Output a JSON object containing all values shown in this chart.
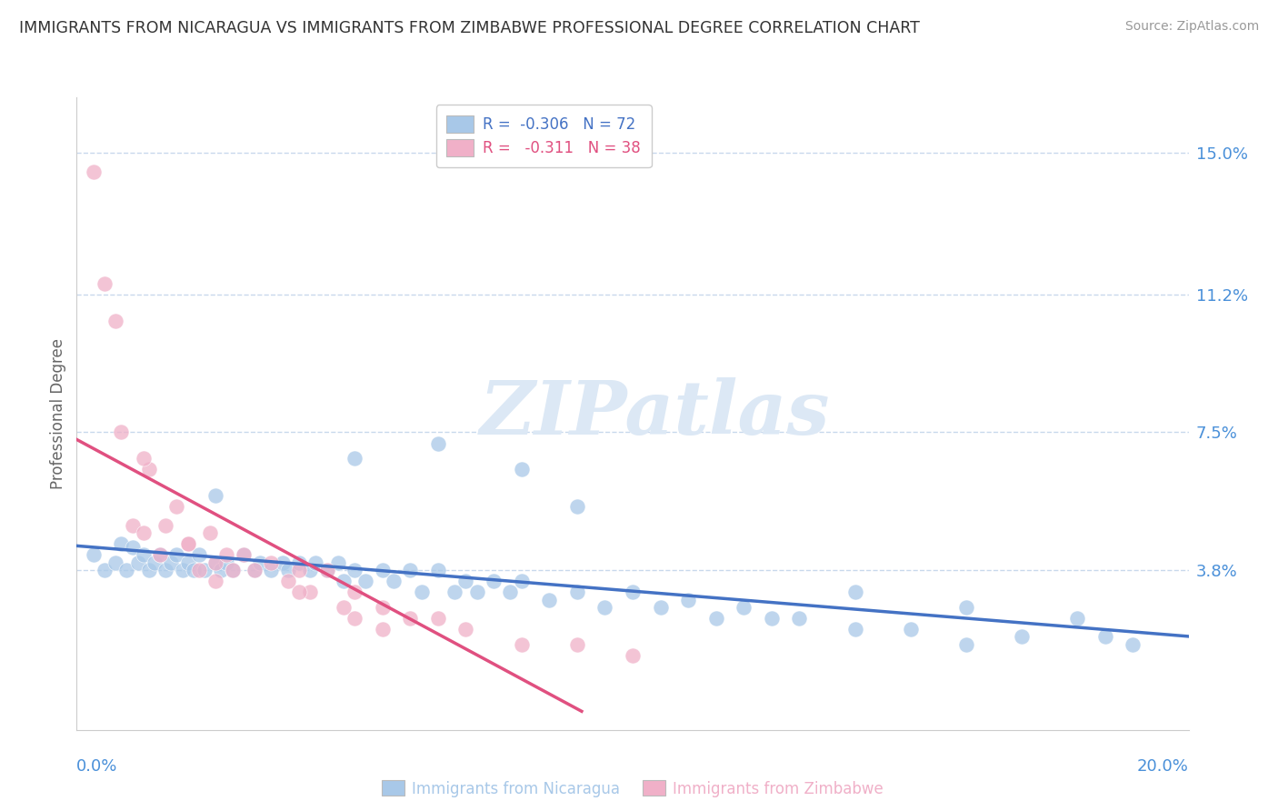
{
  "title": "IMMIGRANTS FROM NICARAGUA VS IMMIGRANTS FROM ZIMBABWE PROFESSIONAL DEGREE CORRELATION CHART",
  "source": "Source: ZipAtlas.com",
  "xlabel_blue": "Immigrants from Nicaragua",
  "xlabel_pink": "Immigrants from Zimbabwe",
  "ylabel": "Professional Degree",
  "R_blue": -0.306,
  "N_blue": 72,
  "R_pink": -0.311,
  "N_pink": 38,
  "xlim": [
    0.0,
    0.2
  ],
  "ylim": [
    0.0,
    0.16
  ],
  "yticks": [
    0.038,
    0.075,
    0.112,
    0.15
  ],
  "ytick_labels": [
    "3.8%",
    "7.5%",
    "11.2%",
    "15.0%"
  ],
  "blue_color": "#a8c8e8",
  "pink_color": "#f0b0c8",
  "blue_line_color": "#4472c4",
  "pink_line_color": "#e05080",
  "grid_color": "#c8d8ec",
  "watermark_color": "#dce8f5",
  "title_color": "#333333",
  "axis_label_color": "#4a90d9",
  "source_color": "#999999",
  "blue_scatter_x": [
    0.003,
    0.005,
    0.007,
    0.008,
    0.009,
    0.01,
    0.011,
    0.012,
    0.013,
    0.014,
    0.015,
    0.016,
    0.017,
    0.018,
    0.019,
    0.02,
    0.021,
    0.022,
    0.023,
    0.025,
    0.026,
    0.027,
    0.028,
    0.03,
    0.032,
    0.033,
    0.035,
    0.037,
    0.038,
    0.04,
    0.042,
    0.043,
    0.045,
    0.047,
    0.048,
    0.05,
    0.052,
    0.055,
    0.057,
    0.06,
    0.062,
    0.065,
    0.068,
    0.07,
    0.072,
    0.075,
    0.078,
    0.08,
    0.085,
    0.09,
    0.095,
    0.1,
    0.105,
    0.11,
    0.115,
    0.12,
    0.125,
    0.13,
    0.14,
    0.15,
    0.16,
    0.17,
    0.18,
    0.185,
    0.19,
    0.025,
    0.05,
    0.065,
    0.08,
    0.09,
    0.14,
    0.16
  ],
  "blue_scatter_y": [
    0.042,
    0.038,
    0.04,
    0.045,
    0.038,
    0.044,
    0.04,
    0.042,
    0.038,
    0.04,
    0.042,
    0.038,
    0.04,
    0.042,
    0.038,
    0.04,
    0.038,
    0.042,
    0.038,
    0.04,
    0.038,
    0.04,
    0.038,
    0.042,
    0.038,
    0.04,
    0.038,
    0.04,
    0.038,
    0.04,
    0.038,
    0.04,
    0.038,
    0.04,
    0.035,
    0.038,
    0.035,
    0.038,
    0.035,
    0.038,
    0.032,
    0.038,
    0.032,
    0.035,
    0.032,
    0.035,
    0.032,
    0.035,
    0.03,
    0.032,
    0.028,
    0.032,
    0.028,
    0.03,
    0.025,
    0.028,
    0.025,
    0.025,
    0.022,
    0.022,
    0.018,
    0.02,
    0.025,
    0.02,
    0.018,
    0.058,
    0.068,
    0.072,
    0.065,
    0.055,
    0.032,
    0.028
  ],
  "pink_scatter_x": [
    0.003,
    0.005,
    0.007,
    0.008,
    0.01,
    0.012,
    0.013,
    0.015,
    0.016,
    0.018,
    0.02,
    0.022,
    0.024,
    0.025,
    0.027,
    0.028,
    0.03,
    0.032,
    0.035,
    0.038,
    0.04,
    0.042,
    0.045,
    0.048,
    0.05,
    0.055,
    0.06,
    0.065,
    0.07,
    0.08,
    0.09,
    0.1,
    0.012,
    0.02,
    0.025,
    0.04,
    0.05,
    0.055
  ],
  "pink_scatter_y": [
    0.145,
    0.115,
    0.105,
    0.075,
    0.05,
    0.048,
    0.065,
    0.042,
    0.05,
    0.055,
    0.045,
    0.038,
    0.048,
    0.04,
    0.042,
    0.038,
    0.042,
    0.038,
    0.04,
    0.035,
    0.038,
    0.032,
    0.038,
    0.028,
    0.032,
    0.028,
    0.025,
    0.025,
    0.022,
    0.018,
    0.018,
    0.015,
    0.068,
    0.045,
    0.035,
    0.032,
    0.025,
    0.022
  ]
}
